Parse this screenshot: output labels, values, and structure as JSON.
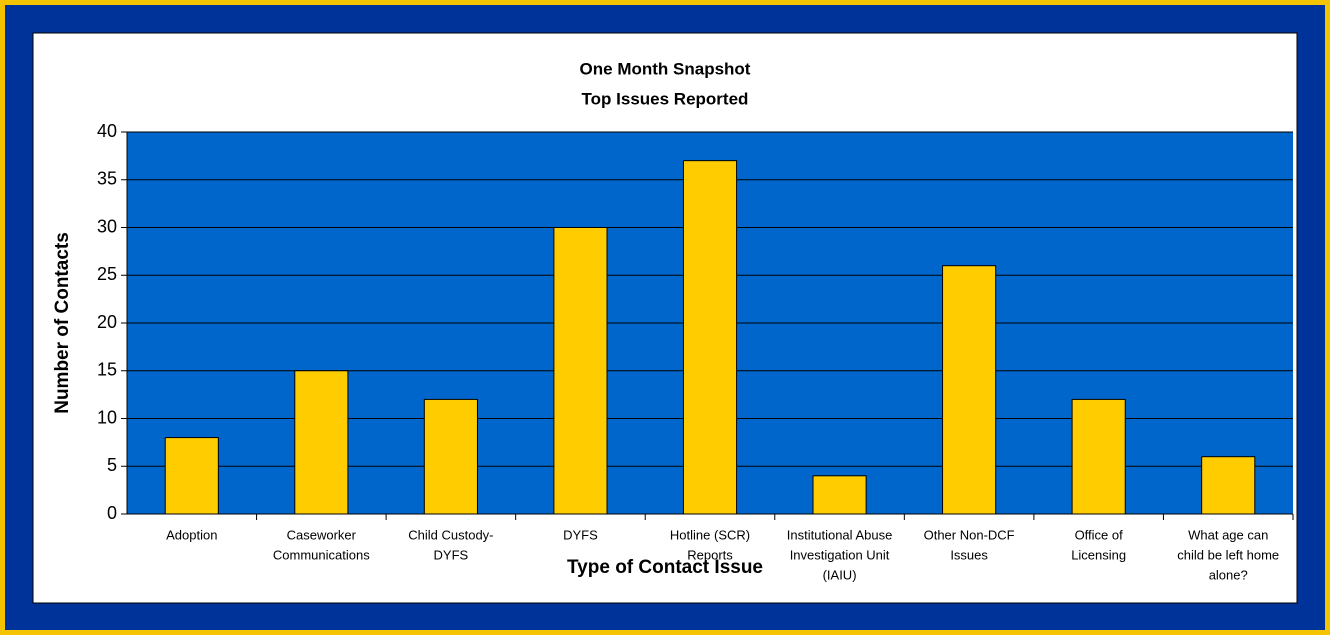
{
  "chart_data": {
    "type": "bar",
    "title": "One Month Snapshot",
    "subtitle": "Top Issues Reported",
    "x_label": "Type of Contact Issue",
    "y_label": "Number of Contacts",
    "categories": [
      [
        "Adoption"
      ],
      [
        "Caseworker",
        "Communications"
      ],
      [
        "Child Custody-",
        "DYFS"
      ],
      [
        "DYFS"
      ],
      [
        "Hotline (SCR)",
        "Reports"
      ],
      [
        "Institutional Abuse",
        "Investigation Unit",
        "(IAIU)"
      ],
      [
        "Other Non-DCF",
        "Issues"
      ],
      [
        "Office of",
        "Licensing"
      ],
      [
        "What age can",
        "child be left home",
        "alone?"
      ]
    ],
    "values": [
      8,
      15,
      12,
      30,
      37,
      4,
      26,
      12,
      6
    ],
    "color": "#ffcc00",
    "plot_background": "#0066cc",
    "ylim": [
      0,
      40
    ],
    "yticks": [
      0,
      5,
      10,
      15,
      20,
      25,
      30,
      35,
      40
    ],
    "grid": true
  }
}
